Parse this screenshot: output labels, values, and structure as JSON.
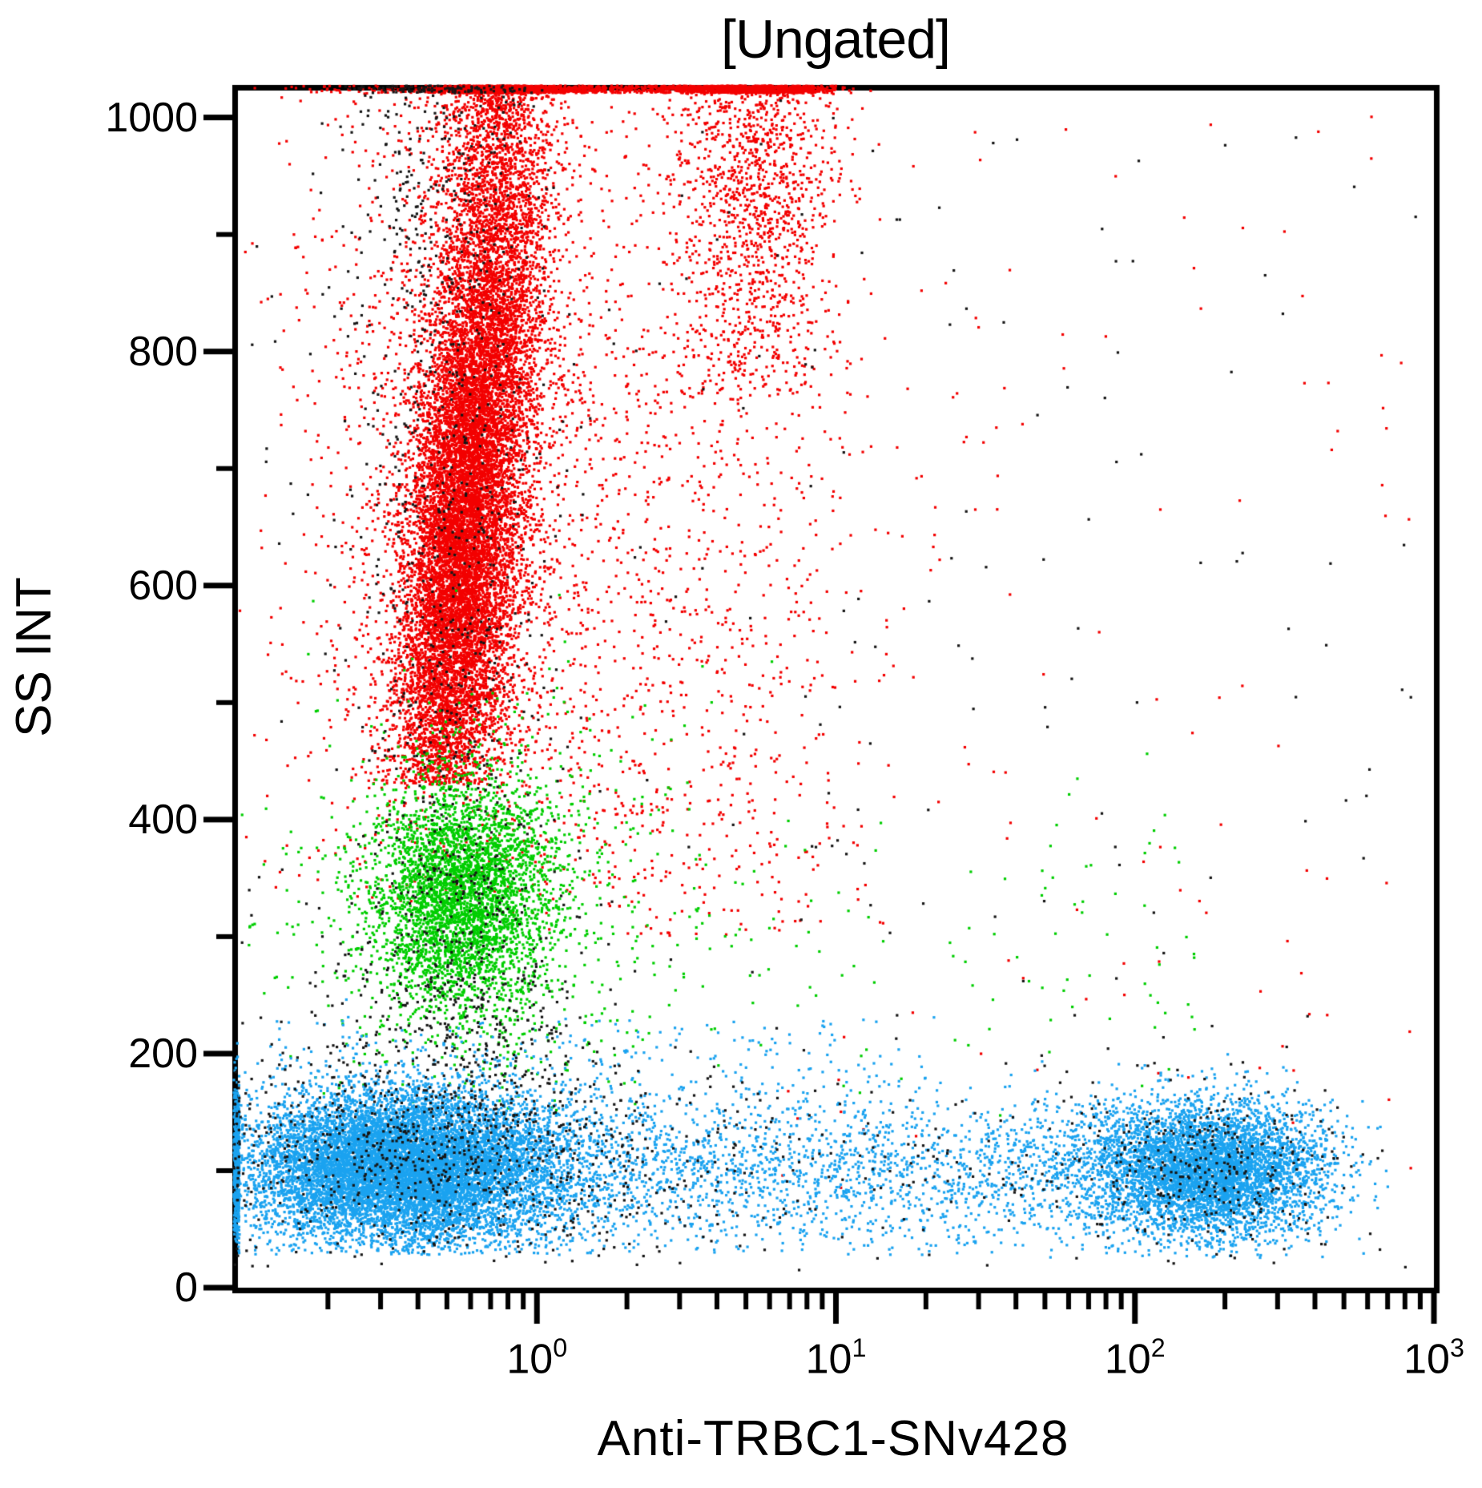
{
  "chart_data": {
    "type": "scatter",
    "title": "[Ungated]",
    "xlabel": "Anti-TRBC1-SNv428",
    "ylabel": "SS INT",
    "x_scale": "log",
    "x_range": [
      0.1,
      1000
    ],
    "y_scale": "linear",
    "y_range": [
      0,
      1023
    ],
    "grid": false,
    "legend": "none",
    "axis_color": "#000000",
    "background_color": "#ffffff",
    "point_size": 3.2,
    "y_ticks": [
      {
        "label": "0",
        "value": 0
      },
      {
        "label": "200",
        "value": 200
      },
      {
        "label": "400",
        "value": 400
      },
      {
        "label": "600",
        "value": 600
      },
      {
        "label": "800",
        "value": 800
      },
      {
        "label": "1000",
        "value": 1000
      }
    ],
    "y_minor_ticks": [
      100,
      300,
      500,
      700,
      900
    ],
    "x_ticks": [
      {
        "base": "10",
        "exp": "0",
        "value": 1
      },
      {
        "base": "10",
        "exp": "1",
        "value": 10
      },
      {
        "base": "10",
        "exp": "2",
        "value": 100
      },
      {
        "base": "10",
        "exp": "3",
        "value": 1000
      }
    ],
    "x_minor_decades": [
      -1,
      0,
      1,
      2
    ],
    "colors": {
      "granulocytes": "#F30000",
      "monocytes": "#00CE00",
      "lymphocytes": "#1BA3F0",
      "debris": "#161616"
    },
    "populations": [
      {
        "name": "granulocytes-core",
        "color": "#F30000",
        "count": 12500,
        "x": {
          "dist": "normal",
          "mu": -0.26,
          "sd": 0.095,
          "shear": 0.00035,
          "shear_ref": 600
        },
        "y": {
          "dist": "normal",
          "mu": 650,
          "sd": 150,
          "min": 430
        },
        "overflow_top": "clamp"
      },
      {
        "name": "granulocytes-upper-neck",
        "color": "#F30000",
        "count": 2600,
        "x": {
          "dist": "normal",
          "mu": -0.13,
          "sd": 0.1
        },
        "y": {
          "dist": "normal",
          "mu": 980,
          "sd": 130,
          "min": 700
        },
        "overflow_top": "clamp"
      },
      {
        "name": "granulocytes-halo",
        "color": "#F30000",
        "count": 2600,
        "x": {
          "dist": "normal",
          "mu": -0.22,
          "sd": 0.3
        },
        "y": {
          "dist": "normal",
          "mu": 680,
          "sd": 240,
          "min": 330
        },
        "overflow_top": "clamp"
      },
      {
        "name": "granulocytes-right-plume",
        "color": "#F30000",
        "count": 2000,
        "x": {
          "dist": "normal",
          "mu": 0.72,
          "sd": 0.14
        },
        "y": {
          "dist": "normal",
          "mu": 975,
          "sd": 120,
          "min": 760
        },
        "overflow_top": "clamp"
      },
      {
        "name": "granulocytes-top-saturated",
        "color": "#F30000",
        "count": 800,
        "x": {
          "dist": "uniform",
          "min": -0.35,
          "max": 1.0
        },
        "y": {
          "dist": "const",
          "value": 1030
        },
        "overflow_top": "clamp"
      },
      {
        "name": "red-mid-scatter",
        "color": "#F30000",
        "count": 800,
        "x": {
          "dist": "normal",
          "mu": 0.55,
          "sd": 0.3
        },
        "y": {
          "dist": "uniform",
          "min": 300,
          "max": 820
        }
      },
      {
        "name": "red-stray",
        "color": "#F30000",
        "count": 130,
        "x": {
          "dist": "uniform",
          "min": 0.8,
          "max": 2.95
        },
        "y": {
          "dist": "uniform",
          "min": 80,
          "max": 1010
        }
      },
      {
        "name": "monocytes-core",
        "color": "#00CE00",
        "count": 3600,
        "x": {
          "dist": "normal",
          "mu": -0.25,
          "sd": 0.15
        },
        "y": {
          "dist": "normal",
          "mu": 335,
          "sd": 50
        }
      },
      {
        "name": "monocytes-halo",
        "color": "#00CE00",
        "count": 700,
        "x": {
          "dist": "normal",
          "mu": -0.2,
          "sd": 0.35
        },
        "y": {
          "dist": "normal",
          "mu": 330,
          "sd": 90,
          "min": 140
        }
      },
      {
        "name": "monocytes-tail",
        "color": "#00CE00",
        "count": 130,
        "x": {
          "dist": "uniform",
          "min": 0.2,
          "max": 2.2
        },
        "y": {
          "dist": "normal",
          "mu": 300,
          "sd": 80
        }
      },
      {
        "name": "lymphocytes-negative",
        "color": "#1BA3F0",
        "count": 10500,
        "clamp_left": true,
        "x": {
          "dist": "normal",
          "mu": -0.44,
          "sd": 0.26
        },
        "y": {
          "dist": "normal",
          "mu": 103,
          "sd": 33,
          "min": 28
        }
      },
      {
        "name": "lymphocytes-left-edge",
        "color": "#1BA3F0",
        "count": 320,
        "clamp_left": true,
        "x": {
          "dist": "const",
          "value": -1.01
        },
        "y": {
          "dist": "normal",
          "mu": 100,
          "sd": 40,
          "min": 28
        }
      },
      {
        "name": "lymphocytes-bridge",
        "color": "#1BA3F0",
        "count": 2300,
        "x": {
          "dist": "uniform",
          "min": -0.15,
          "max": 1.95
        },
        "y": {
          "dist": "normal",
          "mu": 98,
          "sd": 34,
          "min": 28
        }
      },
      {
        "name": "lymphocytes-positive",
        "color": "#1BA3F0",
        "count": 5200,
        "x": {
          "dist": "normal",
          "mu": 2.24,
          "sd": 0.2,
          "max_log": 2.85
        },
        "y": {
          "dist": "normal",
          "mu": 100,
          "sd": 29,
          "min": 25
        }
      },
      {
        "name": "lymphocytes-upper-fringe",
        "color": "#1BA3F0",
        "count": 250,
        "x": {
          "dist": "uniform",
          "min": -0.9,
          "max": 1.3
        },
        "y": {
          "dist": "uniform",
          "min": 140,
          "max": 230
        }
      },
      {
        "name": "debris-in-granulocytes",
        "color": "#161616",
        "count": 700,
        "x": {
          "dist": "normal",
          "mu": -0.28,
          "sd": 0.17
        },
        "y": {
          "dist": "normal",
          "mu": 680,
          "sd": 240,
          "min": 240
        },
        "overflow_top": "clamp"
      },
      {
        "name": "debris-mid-band",
        "color": "#161616",
        "count": 430,
        "x": {
          "dist": "normal",
          "mu": -0.28,
          "sd": 0.24
        },
        "y": {
          "dist": "normal",
          "mu": 210,
          "sd": 55
        }
      },
      {
        "name": "debris-in-lymphocytes",
        "color": "#161616",
        "count": 650,
        "clamp_left": true,
        "x": {
          "dist": "normal",
          "mu": -0.25,
          "sd": 0.45
        },
        "y": {
          "dist": "normal",
          "mu": 108,
          "sd": 42,
          "min": 18
        }
      },
      {
        "name": "debris-bottom-wide",
        "color": "#161616",
        "count": 330,
        "x": {
          "dist": "uniform",
          "min": -1.0,
          "max": 2.65
        },
        "y": {
          "dist": "normal",
          "mu": 105,
          "sd": 45,
          "min": 15
        }
      },
      {
        "name": "debris-in-positive-lymphocytes",
        "color": "#161616",
        "count": 240,
        "x": {
          "dist": "normal",
          "mu": 2.24,
          "sd": 0.22
        },
        "y": {
          "dist": "normal",
          "mu": 100,
          "sd": 33,
          "min": 20
        }
      },
      {
        "name": "debris-sparse-uniform",
        "color": "#161616",
        "count": 250,
        "x": {
          "dist": "uniform",
          "min": -1.0,
          "max": 3.0
        },
        "y": {
          "dist": "uniform",
          "min": 10,
          "max": 1015
        }
      },
      {
        "name": "debris-upper-flank",
        "color": "#161616",
        "count": 220,
        "x": {
          "dist": "normal",
          "mu": -0.38,
          "sd": 0.14
        },
        "y": {
          "dist": "normal",
          "mu": 960,
          "sd": 90
        },
        "overflow_top": "clamp"
      },
      {
        "name": "debris-in-monocytes",
        "color": "#161616",
        "count": 140,
        "x": {
          "dist": "normal",
          "mu": -0.25,
          "sd": 0.17
        },
        "y": {
          "dist": "normal",
          "mu": 330,
          "sd": 60
        }
      }
    ]
  }
}
